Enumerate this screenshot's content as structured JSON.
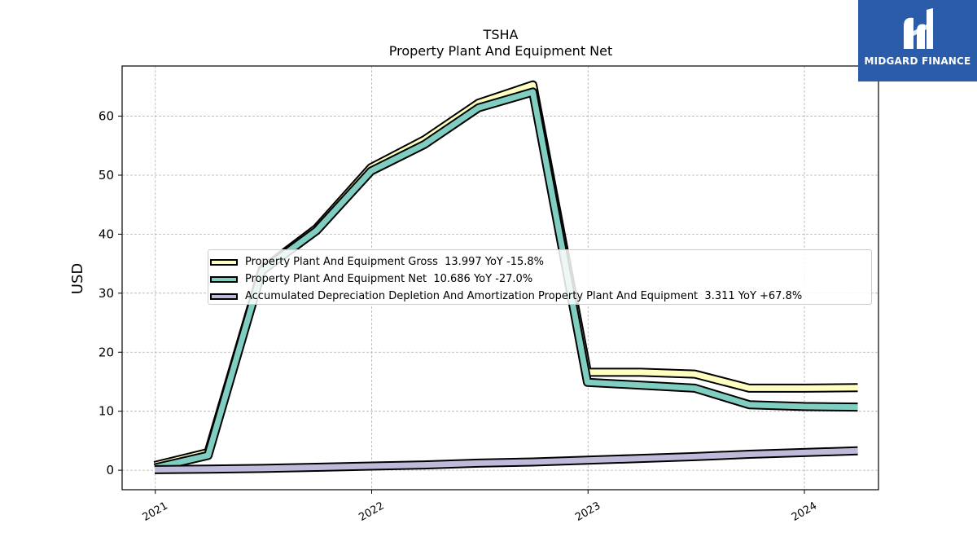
{
  "logo": {
    "text": "MIDGARD FINANCE",
    "mark": "midgard-logo-mark",
    "color": "#2a5caa"
  },
  "chart_data": {
    "type": "line",
    "title": "TSHA",
    "subtitle": "Property Plant And Equipment Net",
    "xlabel": "",
    "ylabel": "USD",
    "xlim": [
      "2020-11-06",
      "2024-05-05"
    ],
    "ylim": [
      -3.3,
      68.5
    ],
    "x_ticks": [
      "2021",
      "2022",
      "2023",
      "2024"
    ],
    "y_ticks": [
      0,
      10,
      20,
      30,
      40,
      50,
      60
    ],
    "grid": true,
    "legend_position": "center-right",
    "x": [
      "2020-12-31",
      "2021-03-31",
      "2021-06-30",
      "2021-09-30",
      "2021-12-31",
      "2022-03-31",
      "2022-06-30",
      "2022-09-30",
      "2022-12-31",
      "2023-03-31",
      "2023-06-30",
      "2023-09-30",
      "2023-12-31",
      "2024-03-31"
    ],
    "series": [
      {
        "name": "Property Plant And Equipment Gross",
        "label": "Property Plant And Equipment Gross  13.997 YoY -15.8%",
        "color": "#ffffbf",
        "values": [
          0.8,
          3.0,
          34.0,
          41.0,
          51.3,
          56.0,
          62.2,
          65.3,
          16.6,
          16.6,
          16.3,
          13.9,
          13.9,
          14.0
        ]
      },
      {
        "name": "Property Plant And Equipment Net",
        "label": "Property Plant And Equipment Net  10.686 YoY -27.0%",
        "color": "#80cdc1",
        "values": [
          0.4,
          2.5,
          33.8,
          40.6,
          50.7,
          55.2,
          61.4,
          64.1,
          14.9,
          14.4,
          13.9,
          11.1,
          10.8,
          10.7
        ]
      },
      {
        "name": "Accumulated Depreciation Depletion And Amortization Property Plant And Equipment",
        "label": "Accumulated Depreciation Depletion And Amortization Property Plant And Equipment  3.311 YoY +67.8%",
        "color": "#bebada",
        "values": [
          0.1,
          0.2,
          0.3,
          0.5,
          0.7,
          0.9,
          1.2,
          1.4,
          1.7,
          2.0,
          2.3,
          2.7,
          3.0,
          3.3
        ]
      }
    ]
  }
}
